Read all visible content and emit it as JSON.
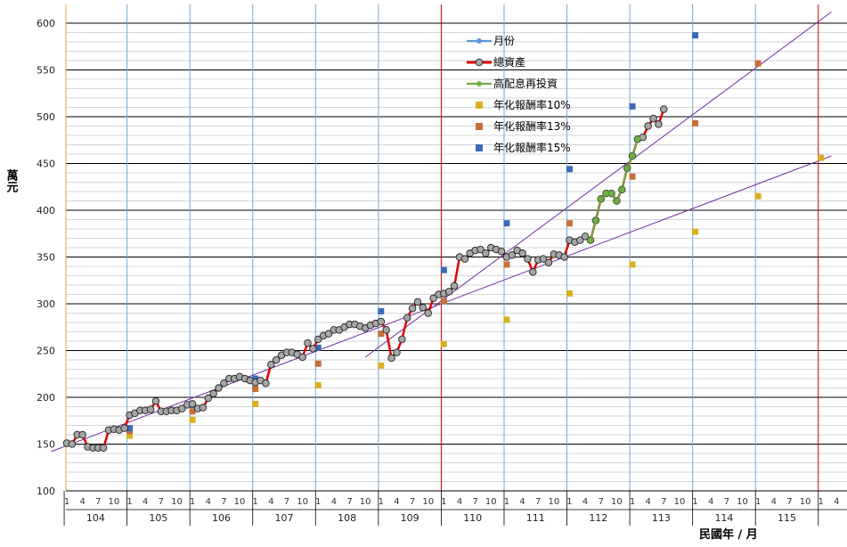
{
  "chart_data": {
    "type": "line",
    "ylabel": "萬元",
    "xlabel": "民國年 / 月",
    "ylim": [
      100,
      620
    ],
    "yticks": [
      100,
      150,
      200,
      250,
      300,
      350,
      400,
      450,
      500,
      550,
      600
    ],
    "years": [
      "104",
      "105",
      "106",
      "107",
      "108",
      "109",
      "110",
      "111",
      "112",
      "113",
      "114",
      "115"
    ],
    "month_ticks": [
      "1",
      "4",
      "7",
      "10"
    ],
    "legend": [
      {
        "name": "月份",
        "color": "#5b9bd5",
        "kind": "line-dot"
      },
      {
        "name": "總資產",
        "color": "#e00000",
        "kind": "line-dot-gray"
      },
      {
        "name": "高配息再投資",
        "color": "#70ad47",
        "kind": "line-dot"
      },
      {
        "name": "年化報酬率10%",
        "color": "#d9b021",
        "kind": "square"
      },
      {
        "name": "年化報酬率13%",
        "color": "#c5703a",
        "kind": "square"
      },
      {
        "name": "年化報酬率15%",
        "color": "#3c6ab5",
        "kind": "square"
      }
    ],
    "series": [
      {
        "name": "總資產",
        "color": "#e00000",
        "x": [
          1,
          2,
          3,
          4,
          5,
          6,
          7,
          8,
          9,
          10,
          11,
          12,
          13,
          14,
          15,
          16,
          17,
          18,
          19,
          20,
          21,
          22,
          23,
          24,
          25,
          26,
          27,
          28,
          29,
          30,
          31,
          32,
          33,
          34,
          35,
          36,
          37,
          38,
          39,
          40,
          41,
          42,
          43,
          44,
          45,
          46,
          47,
          48,
          49,
          50,
          51,
          52,
          53,
          54,
          55,
          56,
          57,
          58,
          59,
          60,
          61,
          62,
          63,
          64,
          65,
          66,
          67,
          68,
          69,
          70,
          71,
          72,
          73,
          74,
          75,
          76,
          77,
          78,
          79,
          80,
          81,
          82,
          83,
          84,
          85,
          86,
          87,
          88,
          89,
          90,
          91,
          92,
          93,
          94,
          95,
          96,
          97,
          98,
          99,
          100,
          101,
          102,
          103,
          104,
          105,
          106,
          107,
          108,
          109,
          110,
          111,
          112,
          113,
          114,
          115
        ],
        "values": [
          151,
          150,
          160,
          160,
          147,
          146,
          146,
          146,
          165,
          166,
          165,
          167,
          181,
          183,
          186,
          186,
          187,
          196,
          185,
          185,
          186,
          186,
          188,
          192,
          193,
          188,
          189,
          199,
          204,
          210,
          215,
          220,
          220,
          222,
          220,
          218,
          216,
          218,
          215,
          235,
          240,
          245,
          248,
          248,
          246,
          243,
          258,
          252,
          262,
          266,
          268,
          272,
          272,
          275,
          278,
          278,
          276,
          274,
          277,
          279,
          281,
          272,
          242,
          248,
          262,
          285,
          295,
          302,
          296,
          290,
          306,
          310,
          311,
          313,
          319,
          350,
          348,
          354,
          357,
          358,
          354,
          360,
          358,
          356,
          350,
          352,
          357,
          354,
          348,
          334,
          347,
          348,
          344,
          353,
          352,
          350,
          368,
          366,
          368,
          372,
          368,
          389,
          412,
          418,
          418,
          410,
          422,
          445,
          458,
          476,
          478,
          490,
          498,
          492,
          508
        ]
      },
      {
        "name": "高配息再投資",
        "color": "#70ad47",
        "x": [
          101,
          102,
          103,
          104,
          105,
          106,
          107,
          108,
          109,
          110
        ],
        "values": [
          368,
          389,
          412,
          418,
          418,
          410,
          422,
          445,
          458,
          476
        ]
      }
    ],
    "markers": [
      {
        "name": "年化報酬率10%",
        "color": "#d9b021",
        "points": [
          [
            13,
            159
          ],
          [
            25,
            176
          ],
          [
            37,
            193
          ],
          [
            49,
            213
          ],
          [
            61,
            234
          ],
          [
            73,
            257
          ],
          [
            85,
            283
          ],
          [
            97,
            311
          ],
          [
            109,
            342
          ],
          [
            121,
            377
          ],
          [
            133,
            415
          ],
          [
            145,
            456
          ]
        ]
      },
      {
        "name": "年化報酬率13%",
        "color": "#c5703a",
        "points": [
          [
            13,
            164
          ],
          [
            25,
            185
          ],
          [
            37,
            209
          ],
          [
            49,
            236
          ],
          [
            61,
            268
          ],
          [
            73,
            303
          ],
          [
            85,
            342
          ],
          [
            97,
            386
          ],
          [
            109,
            436
          ],
          [
            121,
            493
          ],
          [
            133,
            557
          ]
        ]
      },
      {
        "name": "年化報酬率15%",
        "color": "#3c6ab5",
        "points": [
          [
            13,
            167
          ],
          [
            25,
            192
          ],
          [
            37,
            220
          ],
          [
            49,
            253
          ],
          [
            61,
            292
          ],
          [
            73,
            336
          ],
          [
            85,
            386
          ],
          [
            97,
            444
          ],
          [
            109,
            511
          ],
          [
            121,
            587
          ]
        ]
      }
    ],
    "trendlines": [
      {
        "color": "#7030a0",
        "points": [
          [
            -2,
            142
          ],
          [
            147,
            458
          ]
        ]
      },
      {
        "color": "#7030a0",
        "points": [
          [
            58,
            243
          ],
          [
            147,
            612
          ]
        ]
      }
    ]
  }
}
